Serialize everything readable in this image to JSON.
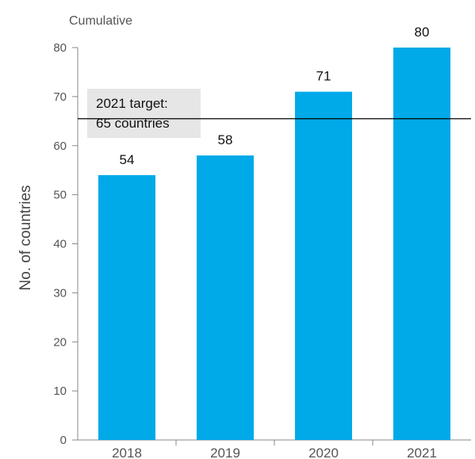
{
  "chart_data": {
    "type": "bar",
    "subtitle": "Cumulative",
    "ylabel": "No. of countries",
    "xlabel": "",
    "categories": [
      "2018",
      "2019",
      "2020",
      "2021"
    ],
    "values": [
      54,
      58,
      71,
      80
    ],
    "data_labels": [
      "54",
      "58",
      "71",
      "80"
    ],
    "ylim": [
      0,
      80
    ],
    "yticks": [
      0,
      10,
      20,
      30,
      40,
      50,
      60,
      70,
      80
    ],
    "grid": false,
    "bar_color": "#00A9E8",
    "target": {
      "value": 65.5,
      "label_line1": "2021 target:",
      "label_line2": "65 countries",
      "line_color": "#000000",
      "label_bg": "#E6E6E6"
    }
  }
}
